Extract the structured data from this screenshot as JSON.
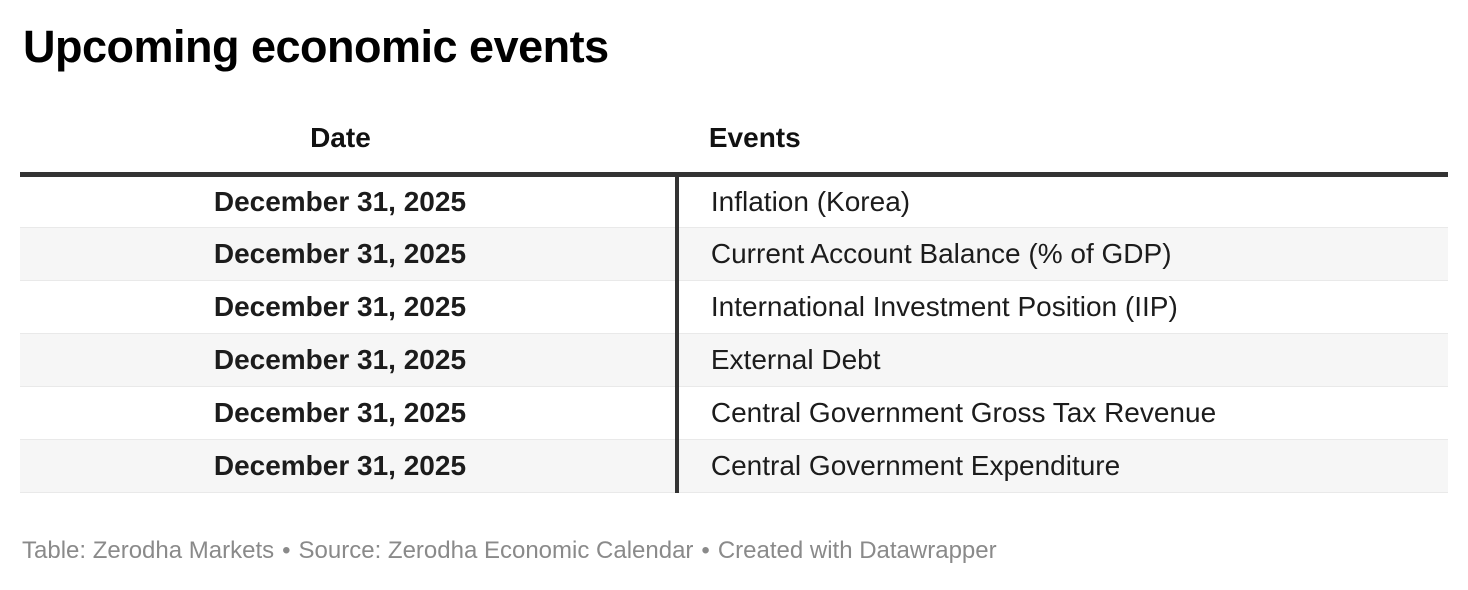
{
  "chart_data": {
    "type": "table",
    "title": "Upcoming economic events",
    "columns": [
      "Date",
      "Events"
    ],
    "rows": [
      [
        "December 31, 2025",
        "Inflation (Korea)"
      ],
      [
        "December 31, 2025",
        "Current Account Balance (% of GDP)"
      ],
      [
        "December 31, 2025",
        "International Investment Position (IIP)"
      ],
      [
        "December 31, 2025",
        "External Debt"
      ],
      [
        "December 31, 2025",
        "Central Government Gross Tax Revenue"
      ],
      [
        "December 31, 2025",
        "Central Government Expenditure"
      ]
    ],
    "layout": {
      "date_column_alignment": "center",
      "events_column_alignment": "left",
      "zebra_striping": true,
      "header_rule": "thick dark horizontal rule below header",
      "column_rule": "dark vertical rule between Date and Events columns"
    }
  },
  "footer": {
    "separator": "•",
    "parts": [
      "Table: Zerodha Markets",
      "Source: Zerodha Economic Calendar",
      "Created with Datawrapper"
    ]
  },
  "colors": {
    "background": "#ffffff",
    "title_text": "#000000",
    "body_text": "#1c1c1c",
    "heavy_rule": "#333333",
    "row_border": "#e9e9e9",
    "stripe": "#f6f6f6",
    "footer_text": "#8a8a8a"
  }
}
